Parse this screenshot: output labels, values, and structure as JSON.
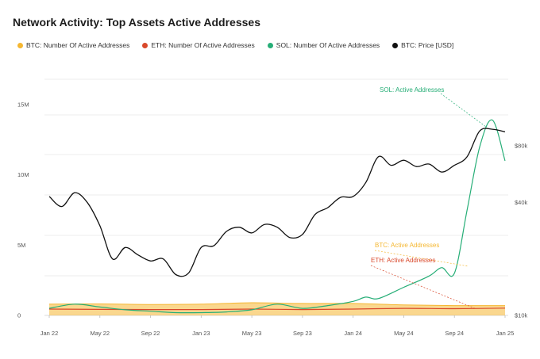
{
  "title": "Network Activity: Top Assets Active Addresses",
  "chart_data": {
    "type": "line",
    "title": "Network Activity: Top Assets Active Addresses",
    "legend_position": "top-left",
    "grid": true,
    "x_ticks": [
      "Jan 22",
      "May 22",
      "Sep 22",
      "Jan 23",
      "May 23",
      "Sep 23",
      "Jan 24",
      "May 24",
      "Sep 24",
      "Jan 25"
    ],
    "y_left_ticks": [
      "0",
      "5M",
      "10M",
      "15M"
    ],
    "y_left_range": [
      0,
      15000000
    ],
    "y_right_ticks": [
      "$10k",
      "$40k",
      "$80k"
    ],
    "y_right_scale": "log",
    "series": [
      {
        "name": "BTC: Number Of Active Addresses",
        "color": "#f5b731",
        "axis": "left",
        "style": "area",
        "x": [
          "2022-01",
          "2022-05",
          "2022-09",
          "2023-01",
          "2023-05",
          "2023-09",
          "2024-01",
          "2024-05",
          "2024-09",
          "2025-01"
        ],
        "y": [
          800000,
          820000,
          780000,
          800000,
          900000,
          850000,
          850000,
          750000,
          700000,
          700000
        ]
      },
      {
        "name": "ETH: Number Of Active Addresses",
        "color": "#d9482b",
        "axis": "left",
        "style": "line",
        "x": [
          "2022-01",
          "2022-05",
          "2022-09",
          "2023-01",
          "2023-05",
          "2023-09",
          "2024-01",
          "2024-05",
          "2024-09",
          "2025-01"
        ],
        "y": [
          450000,
          430000,
          420000,
          420000,
          450000,
          420000,
          450000,
          500000,
          480000,
          520000
        ]
      },
      {
        "name": "SOL: Number Of Active Addresses",
        "color": "#27ae77",
        "axis": "left",
        "style": "line",
        "x": [
          "2022-01",
          "2022-03",
          "2022-05",
          "2022-07",
          "2022-09",
          "2022-11",
          "2023-01",
          "2023-03",
          "2023-05",
          "2023-07",
          "2023-09",
          "2023-11",
          "2024-01",
          "2024-02",
          "2024-03",
          "2024-05",
          "2024-07",
          "2024-08",
          "2024-09",
          "2024-10",
          "2024-11",
          "2024-12",
          "2025-01"
        ],
        "y": [
          500000,
          800000,
          600000,
          400000,
          300000,
          200000,
          200000,
          250000,
          400000,
          800000,
          500000,
          700000,
          1000000,
          1300000,
          1200000,
          2000000,
          2800000,
          3400000,
          3000000,
          7500000,
          12000000,
          13900000,
          11000000
        ]
      },
      {
        "name": "BTC: Price [USD]",
        "color": "#111111",
        "axis": "right",
        "style": "line",
        "x": [
          "2022-01",
          "2022-02",
          "2022-03",
          "2022-04",
          "2022-05",
          "2022-06",
          "2022-07",
          "2022-08",
          "2022-09",
          "2022-10",
          "2022-11",
          "2022-12",
          "2023-01",
          "2023-02",
          "2023-03",
          "2023-04",
          "2023-05",
          "2023-06",
          "2023-07",
          "2023-08",
          "2023-09",
          "2023-10",
          "2023-11",
          "2023-12",
          "2024-01",
          "2024-02",
          "2024-03",
          "2024-04",
          "2024-05",
          "2024-06",
          "2024-07",
          "2024-08",
          "2024-09",
          "2024-10",
          "2024-11",
          "2024-12",
          "2025-01"
        ],
        "y": [
          43000,
          38000,
          45000,
          40000,
          30000,
          20000,
          23000,
          21000,
          19500,
          20000,
          16500,
          16800,
          23000,
          23500,
          28000,
          29500,
          27500,
          30500,
          29500,
          26000,
          27000,
          34500,
          37500,
          42500,
          43000,
          51000,
          70000,
          63000,
          67000,
          62000,
          64000,
          58000,
          63000,
          70000,
          96000,
          98000,
          95000
        ]
      }
    ],
    "annotations": [
      {
        "text": "SOL: Active Addresses",
        "color": "#27ae77"
      },
      {
        "text": "BTC: Active Addresses",
        "color": "#f5b731"
      },
      {
        "text": "ETH: Active Addresses",
        "color": "#d9482b"
      }
    ]
  }
}
